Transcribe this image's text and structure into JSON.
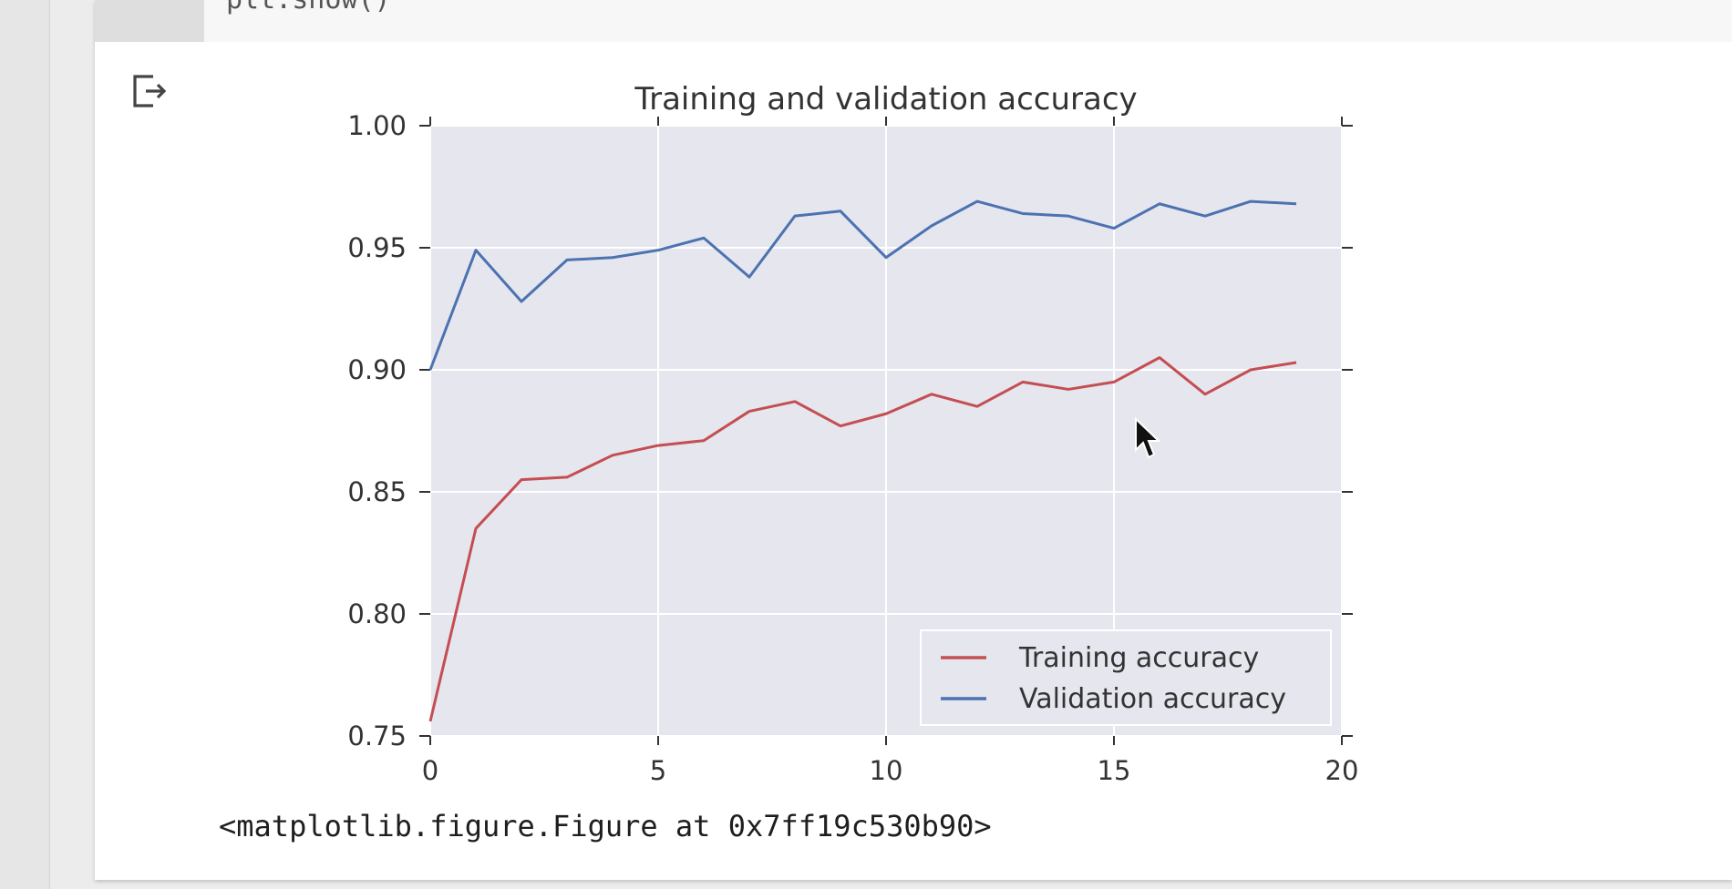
{
  "code_cell": {
    "visible_code": "plt.show()"
  },
  "output": {
    "icon": "output-arrow-icon",
    "figure_repr": "<matplotlib.figure.Figure at 0x7ff19c530b90>"
  },
  "colors": {
    "plot_background": "#e6e6ef",
    "grid": "#ffffff",
    "training": "#c44e52",
    "validation": "#4c72b0"
  },
  "chart_data": {
    "type": "line",
    "title": "Training and validation accuracy",
    "xlabel": "",
    "ylabel": "",
    "xlim": [
      0,
      20
    ],
    "ylim": [
      0.75,
      1.0
    ],
    "xticks": [
      "0",
      "5",
      "10",
      "15",
      "20"
    ],
    "yticks": [
      "0.75",
      "0.80",
      "0.85",
      "0.90",
      "0.95",
      "1.00"
    ],
    "grid": true,
    "legend_position": "lower-right",
    "x": [
      0,
      1,
      2,
      3,
      4,
      5,
      6,
      7,
      8,
      9,
      10,
      11,
      12,
      13,
      14,
      15,
      16,
      17,
      18,
      19
    ],
    "series": [
      {
        "name": "Training accuracy",
        "color": "#c44e52",
        "values": [
          0.756,
          0.835,
          0.855,
          0.856,
          0.865,
          0.869,
          0.871,
          0.883,
          0.887,
          0.877,
          0.882,
          0.89,
          0.885,
          0.895,
          0.892,
          0.895,
          0.905,
          0.89,
          0.9,
          0.903
        ]
      },
      {
        "name": "Validation accuracy",
        "color": "#4c72b0",
        "values": [
          0.9,
          0.949,
          0.928,
          0.945,
          0.946,
          0.949,
          0.954,
          0.938,
          0.963,
          0.965,
          0.946,
          0.959,
          0.969,
          0.964,
          0.963,
          0.958,
          0.968,
          0.963,
          0.969,
          0.968
        ]
      }
    ]
  }
}
